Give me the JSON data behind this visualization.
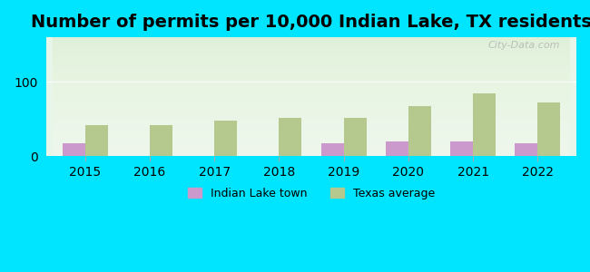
{
  "title": "Number of permits per 10,000 Indian Lake, TX residents",
  "years": [
    2015,
    2016,
    2017,
    2018,
    2019,
    2020,
    2021,
    2022
  ],
  "indian_lake": [
    18,
    0,
    0,
    0,
    18,
    20,
    20,
    18
  ],
  "texas_avg": [
    42,
    42,
    48,
    52,
    52,
    68,
    85,
    72
  ],
  "indian_lake_color": "#cc99cc",
  "texas_avg_color": "#b5c98e",
  "background_outer": "#00e5ff",
  "background_inner_top": "#e8f5e9",
  "background_inner_bottom": "#c8e6c9",
  "ylim": [
    0,
    160
  ],
  "yticks": [
    0,
    100
  ],
  "bar_width": 0.35,
  "title_fontsize": 14,
  "watermark": "City-Data.com",
  "legend_label_town": "Indian Lake town",
  "legend_label_texas": "Texas average"
}
